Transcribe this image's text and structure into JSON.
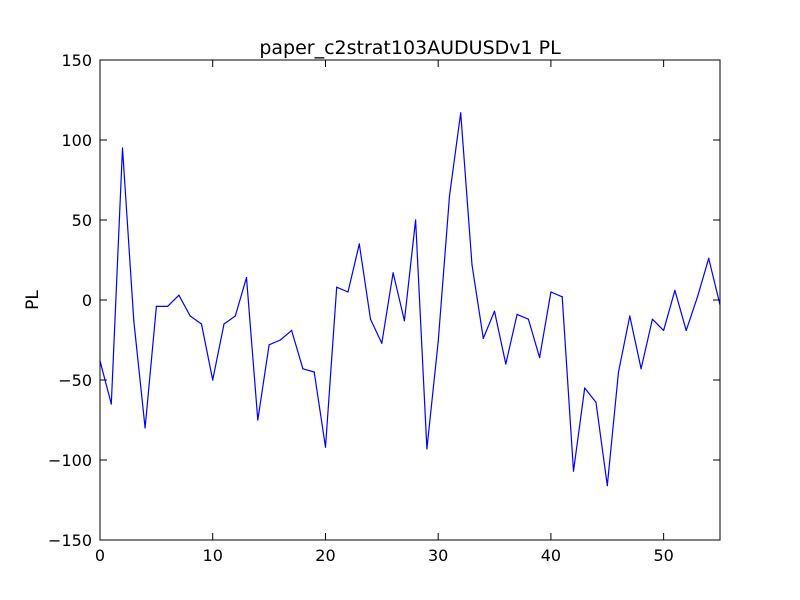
{
  "chart_data": {
    "type": "line",
    "title": "paper_c2strat103AUDUSDv1 PL",
    "xlabel": "",
    "ylabel": "PL",
    "xlim": [
      0,
      55
    ],
    "ylim": [
      -150,
      150
    ],
    "xticks": [
      0,
      10,
      20,
      30,
      40,
      50
    ],
    "yticks": [
      -150,
      -100,
      -50,
      0,
      50,
      100,
      150
    ],
    "xtick_labels": [
      "0",
      "10",
      "20",
      "30",
      "40",
      "50"
    ],
    "ytick_labels": [
      "−150",
      "−100",
      "−50",
      "0",
      "50",
      "100",
      "150"
    ],
    "grid": false,
    "line_color": "#0000ff",
    "series": [
      {
        "x": [
          0,
          1,
          2,
          3,
          4,
          5,
          6,
          7,
          8,
          9,
          10,
          11,
          12,
          13,
          14,
          15,
          16,
          17,
          18,
          19,
          20,
          21,
          22,
          23,
          24,
          25,
          26,
          27,
          28,
          29,
          30,
          31,
          32,
          33,
          34,
          35,
          36,
          37,
          38,
          39,
          40,
          41,
          42,
          43,
          44,
          45,
          46,
          47,
          48,
          49,
          50,
          51,
          52,
          53,
          54,
          55
        ],
        "values": [
          -38,
          -65,
          95,
          -13,
          -80,
          -4,
          -4,
          3,
          -10,
          -15,
          -50,
          -15,
          -10,
          14,
          -75,
          -28,
          -25,
          -19,
          -43,
          -45,
          -92,
          8,
          5,
          35,
          -12,
          -27,
          17,
          -13,
          50,
          -93,
          -26,
          65,
          117,
          22,
          -24,
          -7,
          -40,
          -9,
          -12,
          -36,
          5,
          2,
          -107,
          -55,
          -64,
          -116,
          -45,
          -10,
          -43,
          -12,
          -19,
          6,
          -19,
          2,
          26,
          -3
        ]
      }
    ]
  }
}
